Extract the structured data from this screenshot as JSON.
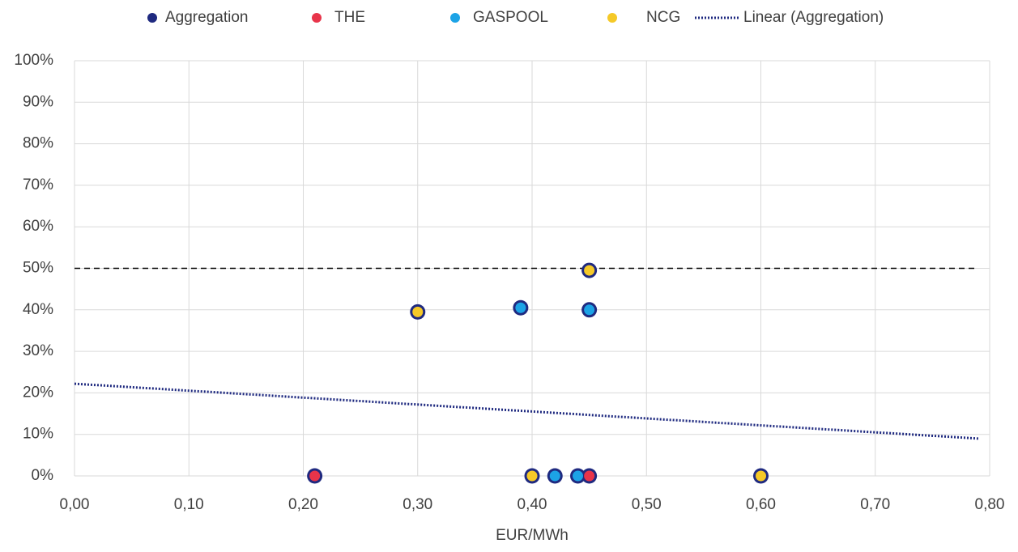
{
  "chart_data": {
    "type": "scatter",
    "x_label": "EUR/MWh",
    "xlim": [
      0,
      0.8
    ],
    "ylim": [
      0,
      100
    ],
    "xticks": [
      {
        "value": 0,
        "label": "0,00"
      },
      {
        "value": 0.1,
        "label": "0,10"
      },
      {
        "value": 0.2,
        "label": "0,20"
      },
      {
        "value": 0.3,
        "label": "0,30"
      },
      {
        "value": 0.4,
        "label": "0,40"
      },
      {
        "value": 0.5,
        "label": "0,50"
      },
      {
        "value": 0.6,
        "label": "0,60"
      },
      {
        "value": 0.7,
        "label": "0,70"
      },
      {
        "value": 0.8,
        "label": "0,80"
      }
    ],
    "yticks": [
      {
        "value": 0,
        "label": "0%"
      },
      {
        "value": 10,
        "label": "10%"
      },
      {
        "value": 20,
        "label": "20%"
      },
      {
        "value": 30,
        "label": "30%"
      },
      {
        "value": 40,
        "label": "40%"
      },
      {
        "value": 50,
        "label": "50%"
      },
      {
        "value": 60,
        "label": "60%"
      },
      {
        "value": 70,
        "label": "70%"
      },
      {
        "value": 80,
        "label": "80%"
      },
      {
        "value": 90,
        "label": "90%"
      },
      {
        "value": 100,
        "label": "100%"
      }
    ],
    "grid": true,
    "legend": "top",
    "series": [
      {
        "name": "Aggregation",
        "color": "#1f2a80",
        "marker": "large",
        "x": [
          0.21,
          0.3,
          0.39,
          0.4,
          0.42,
          0.44,
          0.45,
          0.45,
          0.45,
          0.6
        ],
        "values": [
          0,
          39.5,
          40.5,
          0,
          0,
          0,
          0,
          49.5,
          40,
          0
        ]
      },
      {
        "name": "THE",
        "color": "#e8344a",
        "marker": "small",
        "x": [
          0.21,
          0.45
        ],
        "values": [
          0,
          0
        ]
      },
      {
        "name": "GASPOOL",
        "color": "#1ca3e6",
        "marker": "small",
        "x": [
          0.39,
          0.42,
          0.44,
          0.45
        ],
        "values": [
          40.5,
          0,
          0,
          40
        ]
      },
      {
        "name": "NCG",
        "color": "#f5c928",
        "marker": "small",
        "x": [
          0.3,
          0.4,
          0.45,
          0.6
        ],
        "values": [
          39.5,
          0,
          49.5,
          0
        ]
      },
      {
        "name": "Linear (Aggregation)",
        "color": "#1f2a80",
        "marker": "dotted-line",
        "x": [
          0,
          0.79
        ],
        "values": [
          22.2,
          9
        ]
      },
      {
        "color": "#000000",
        "marker": "dashed-line",
        "x": [
          0,
          0.79
        ],
        "values": [
          50,
          50
        ]
      }
    ]
  }
}
